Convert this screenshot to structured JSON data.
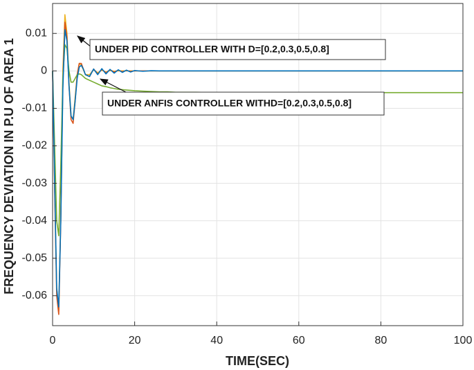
{
  "chart_data": {
    "type": "line",
    "xlabel": "TIME(SEC)",
    "ylabel": "FREQUENCY DEVIATION IN P.U OF AREA 1",
    "annotations": [
      {
        "text": "UNDER PID CONTROLLER WITH D=[0.2,0.3,0.5,0.8]"
      },
      {
        "text": "UNDER ANFIS CONTROLLER WITHD=[0.2,0.3,0.5,0.8]"
      }
    ],
    "x": [
      0,
      0.5,
      1,
      1.5,
      2,
      2.5,
      3,
      3.5,
      4,
      4.5,
      5,
      5.5,
      6,
      6.5,
      7,
      7.5,
      8,
      9,
      10,
      11,
      12,
      13,
      14,
      15,
      16,
      17,
      18,
      19,
      20,
      22,
      24,
      26,
      28,
      30,
      35,
      40,
      50,
      60,
      70,
      80,
      90,
      100
    ],
    "series": [
      {
        "color": "#edb120",
        "values": [
          0,
          -0.03,
          -0.058,
          -0.064,
          -0.038,
          0,
          0.015,
          0.01,
          -0.003,
          -0.012,
          -0.013,
          -0.007,
          -0.001,
          0.002,
          0.0015,
          0.0003,
          -0.001,
          -0.001,
          0.0003,
          -0.0005,
          0.0002,
          -0.0003,
          0.0001,
          -0.0001,
          0,
          0,
          0,
          0,
          0,
          0,
          0,
          0,
          0,
          0,
          0,
          0,
          0,
          0,
          0,
          0,
          0,
          0
        ]
      },
      {
        "color": "#d95319",
        "values": [
          0,
          -0.032,
          -0.06,
          -0.065,
          -0.04,
          -0.003,
          0.013,
          0.009,
          -0.004,
          -0.013,
          -0.014,
          -0.008,
          -0.001,
          0.002,
          0.002,
          0.0005,
          -0.001,
          -0.0015,
          0.0005,
          -0.0008,
          0.0004,
          -0.0005,
          0.0003,
          -0.0003,
          0.0002,
          -0.0002,
          0.0001,
          -0.0001,
          0,
          0,
          0,
          0,
          0,
          0,
          0,
          0,
          0,
          0,
          0,
          0,
          0,
          0
        ]
      },
      {
        "color": "#77ac30",
        "values": [
          0,
          -0.02,
          -0.04,
          -0.044,
          -0.025,
          -0.002,
          0.007,
          0.006,
          0,
          -0.003,
          -0.003,
          -0.002,
          -0.001,
          -0.0008,
          -0.001,
          -0.0015,
          -0.002,
          -0.0025,
          -0.003,
          -0.0035,
          -0.004,
          -0.0042,
          -0.0045,
          -0.0047,
          -0.0049,
          -0.005,
          -0.0051,
          -0.0052,
          -0.0053,
          -0.0054,
          -0.0055,
          -0.0056,
          -0.0056,
          -0.0057,
          -0.0057,
          -0.0058,
          -0.0058,
          -0.0058,
          -0.0058,
          -0.0058,
          -0.0058,
          -0.0058
        ]
      },
      {
        "color": "#0072bd",
        "values": [
          0,
          -0.03,
          -0.058,
          -0.063,
          -0.04,
          -0.005,
          0.011,
          0.008,
          -0.004,
          -0.012,
          -0.013,
          -0.008,
          -0.002,
          0.001,
          0.0015,
          0.0005,
          -0.001,
          -0.0015,
          0.0005,
          -0.001,
          0.0006,
          -0.0008,
          0.0004,
          -0.0006,
          0.0003,
          -0.0004,
          0.0002,
          -0.0003,
          0.0001,
          -0.0001,
          5e-05,
          0,
          0,
          0,
          0,
          0,
          0,
          0,
          0,
          0,
          0,
          0
        ]
      }
    ],
    "xlim": [
      0,
      100
    ],
    "xticks": [
      0,
      20,
      40,
      60,
      80,
      100
    ],
    "ylim": [
      -0.068,
      0.018
    ],
    "yticks": [
      0.01,
      0,
      -0.01,
      -0.02,
      -0.03,
      -0.04,
      -0.05,
      -0.06
    ],
    "grid": true
  }
}
